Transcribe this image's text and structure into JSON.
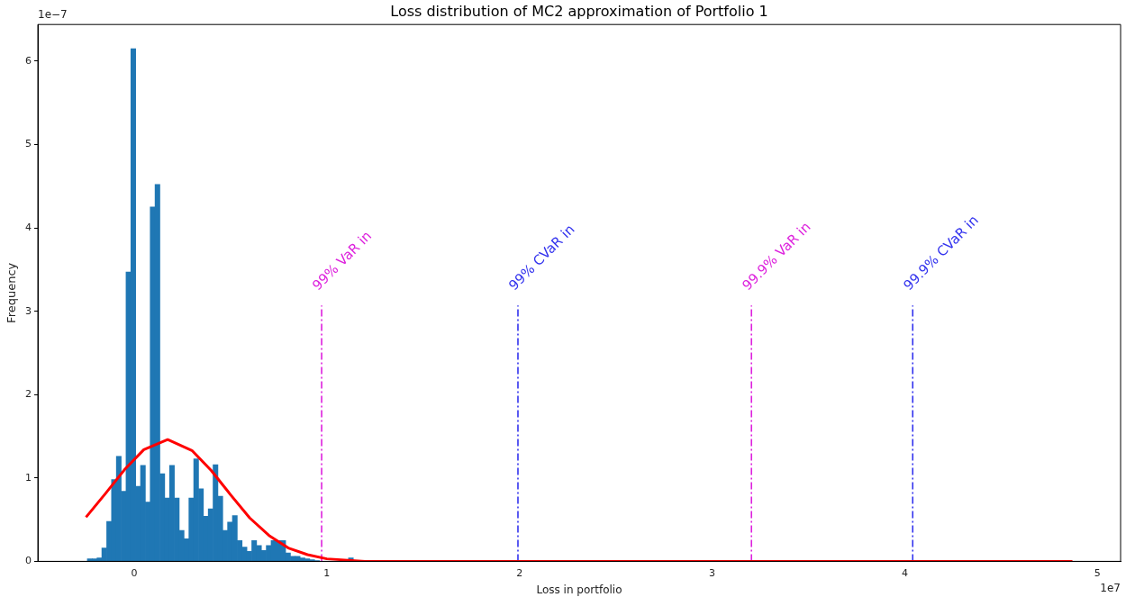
{
  "chart_data": {
    "type": "histogram",
    "title": "Loss distribution of MC2 approximation of Portfolio 1",
    "xlabel": "Loss in portfolio",
    "ylabel": "Frequency",
    "xlim": [
      -0.5,
      5.12
    ],
    "ylim": [
      0,
      6.44
    ],
    "xticks": [
      0,
      1,
      2,
      3,
      4,
      5
    ],
    "yticks": [
      0,
      1,
      2,
      3,
      4,
      5,
      6
    ],
    "grid": false,
    "legend": false,
    "marker": "none",
    "series": [
      {
        "type": "histogram",
        "color": "#1f77b4",
        "bins": [
          -0.243,
          -0.2179,
          -0.1928,
          -0.1677,
          -0.1426,
          -0.1175,
          -0.0924,
          -0.0673,
          -0.0422,
          -0.0171,
          0.008,
          0.0331,
          0.0582,
          0.0833,
          0.1084,
          0.1335,
          0.1586,
          0.1837,
          0.2088,
          0.2339,
          0.259,
          0.2841,
          0.3092,
          0.3343,
          0.3594,
          0.3845,
          0.4096,
          0.4347,
          0.4598,
          0.4849,
          0.51,
          0.5351,
          0.5602,
          0.5853,
          0.6104,
          0.6355,
          0.6606,
          0.6857,
          0.7108,
          0.7359,
          0.761,
          0.7861,
          0.8112,
          0.8363,
          0.8614,
          0.8865,
          0.9116,
          0.9367,
          0.9618,
          0.9869,
          1.012,
          1.0371,
          1.0622,
          1.0873,
          1.1124,
          1.1375,
          1.1626
        ],
        "values": [
          0.03,
          0.03,
          0.04,
          0.16,
          0.48,
          0.98,
          1.26,
          0.84,
          3.47,
          6.15,
          0.9,
          1.15,
          0.71,
          4.25,
          4.52,
          1.05,
          0.76,
          1.15,
          0.76,
          0.37,
          0.27,
          0.76,
          1.23,
          0.87,
          0.54,
          0.63,
          1.16,
          0.78,
          0.37,
          0.47,
          0.55,
          0.25,
          0.17,
          0.12,
          0.25,
          0.19,
          0.13,
          0.19,
          0.25,
          0.25,
          0.25,
          0.1,
          0.06,
          0.06,
          0.04,
          0.03,
          0.02,
          0.01,
          0,
          0,
          0,
          0,
          0,
          0,
          0.04,
          0.01
        ]
      },
      {
        "type": "line",
        "color": "#ff0000",
        "line_style": "solid",
        "x": [
          -0.25,
          -0.15,
          -0.05,
          0.05,
          0.174,
          0.3,
          0.4,
          0.5,
          0.6,
          0.7,
          0.8,
          0.9,
          1.0,
          1.2,
          1.5,
          2,
          3,
          4,
          4.87
        ],
        "values": [
          0.53,
          0.81,
          1.1,
          1.34,
          1.46,
          1.33,
          1.09,
          0.8,
          0.52,
          0.31,
          0.16,
          0.08,
          0.03,
          0,
          0,
          0,
          0,
          0,
          0
        ]
      },
      {
        "type": "line",
        "color": "#dd22dd",
        "line_style": "dashed",
        "x": [
          0.973,
          0.973
        ],
        "values": [
          0,
          3.07
        ]
      },
      {
        "type": "line",
        "color": "#3333ee",
        "line_style": "dashed",
        "x": [
          1.992,
          1.992
        ],
        "values": [
          0,
          3.07
        ]
      },
      {
        "type": "line",
        "color": "#dd22dd",
        "line_style": "dashed",
        "x": [
          3.204,
          3.204
        ],
        "values": [
          0,
          3.07
        ]
      },
      {
        "type": "line",
        "color": "#3333ee",
        "line_style": "dashed",
        "x": [
          4.041,
          4.041
        ],
        "values": [
          0,
          3.07
        ]
      }
    ],
    "annotations": [
      "1e−7",
      "1e7",
      {
        "text": "99% VaR in",
        "x": 0.973,
        "y": 3.07
      },
      {
        "text": "99% CVaR in",
        "x": 1.992,
        "y": 3.07
      },
      {
        "text": "99.9% VaR in",
        "x": 3.204,
        "y": 3.07
      },
      {
        "text": "99.9% CVaR in",
        "x": 4.041,
        "y": 3.07
      }
    ]
  }
}
